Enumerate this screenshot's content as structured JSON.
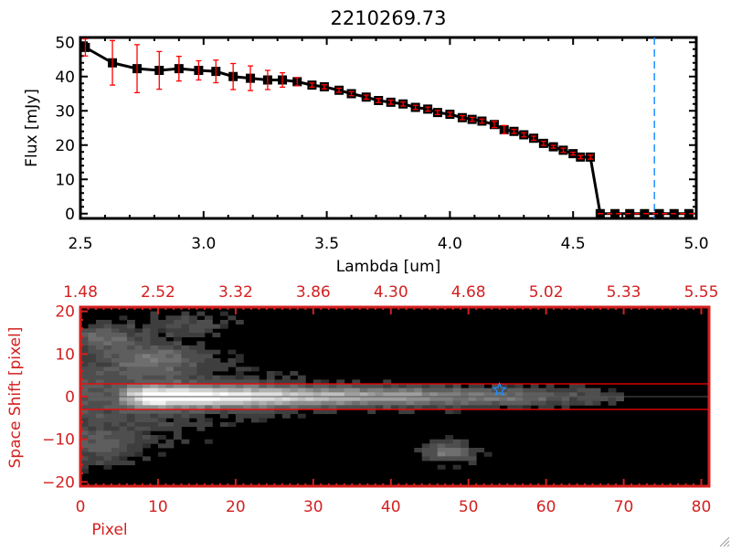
{
  "chart_data": [
    {
      "type": "line",
      "title": "2210269.73",
      "xlabel": "Lambda [um]",
      "ylabel": "Flux [mJy]",
      "xlim": [
        2.5,
        5.0
      ],
      "ylim": [
        -1.4,
        51.4
      ],
      "xticks": [
        "2.5",
        "3.0",
        "3.5",
        "4.0",
        "4.5",
        "5.0"
      ],
      "xtick_values": [
        2.5,
        3.0,
        3.5,
        4.0,
        4.5,
        5.0
      ],
      "yticks": [
        "0",
        "10",
        "20",
        "30",
        "40",
        "50"
      ],
      "ytick_values": [
        0,
        10,
        20,
        30,
        40,
        50
      ],
      "series": [
        {
          "name": "flux",
          "color": "#000000",
          "errcolor": "#ff0000",
          "x": [
            2.52,
            2.63,
            2.73,
            2.82,
            2.9,
            2.98,
            3.05,
            3.12,
            3.19,
            3.26,
            3.32,
            3.38,
            3.44,
            3.49,
            3.55,
            3.6,
            3.66,
            3.71,
            3.76,
            3.81,
            3.86,
            3.91,
            3.95,
            4.0,
            4.05,
            4.09,
            4.13,
            4.18,
            4.22,
            4.26,
            4.3,
            4.34,
            4.38,
            4.42,
            4.46,
            4.5,
            4.53,
            4.57,
            4.61,
            4.67,
            4.73,
            4.79,
            4.85,
            4.91,
            4.97
          ],
          "y": [
            48.5,
            44,
            42.3,
            41.8,
            42.3,
            41.8,
            41.5,
            40,
            39.5,
            39,
            39,
            38.5,
            37.5,
            37,
            36,
            35,
            34,
            33,
            32.5,
            32,
            31,
            30.5,
            29.5,
            29,
            28,
            27.5,
            27,
            26,
            24.5,
            24,
            23,
            22,
            20.5,
            19.5,
            18.5,
            17.5,
            16.5,
            16.5,
            0,
            0,
            0,
            0,
            0,
            0,
            0
          ],
          "err": [
            2.5,
            6.5,
            7,
            5.5,
            3.6,
            2.8,
            3.3,
            3.8,
            3.6,
            2.8,
            2.1,
            1.2,
            0.6,
            0.6,
            0.6,
            0.6,
            0.6,
            0.6,
            0.6,
            0.6,
            0.6,
            0.6,
            0.6,
            0.6,
            0.6,
            0.6,
            0.6,
            0.9,
            1.2,
            0.6,
            0.6,
            0.6,
            0.6,
            0.4,
            0.6,
            0.4,
            0.5,
            0.6,
            0,
            0,
            0,
            0,
            0,
            0,
            0
          ]
        }
      ],
      "zero_line": {
        "value": 0,
        "color": "#ff0000",
        "style": "dashed",
        "from": 4.6
      },
      "marker_line": {
        "x": 4.83,
        "color": "#1e90ff",
        "style": "dashed"
      }
    },
    {
      "type": "heatmap",
      "xlabel": "Pixel",
      "ylabel": "Space Shift [pixel]",
      "axis_color": "#d42020",
      "xlim": [
        0,
        81
      ],
      "ylim": [
        -21,
        21
      ],
      "xticks": [
        "0",
        "10",
        "20",
        "30",
        "40",
        "50",
        "60",
        "70",
        "80"
      ],
      "xtick_values": [
        0,
        10,
        20,
        30,
        40,
        50,
        60,
        70,
        80
      ],
      "top_xticks": [
        "1.48",
        "2.52",
        "3.32",
        "3.86",
        "4.30",
        "4.68",
        "5.02",
        "5.33",
        "5.55"
      ],
      "yticks": [
        "20",
        "10",
        "0",
        "−10",
        "−20"
      ],
      "ytick_values": [
        20,
        10,
        0,
        -10,
        -20
      ],
      "aperture_lines": [
        3,
        -3
      ],
      "aperture_color": "#ff0000",
      "center_line": 0,
      "source_marker": {
        "x": 54,
        "y": 1.6,
        "symbol": "star",
        "color": "#1e90ff"
      },
      "components": [
        {
          "kind": "trace",
          "amp": 1.0,
          "peak_x": 9,
          "sigma_y": 1.7,
          "end_x": 70
        },
        {
          "kind": "halo",
          "amp": 0.28,
          "sigma_y": 7,
          "end_x": 35
        },
        {
          "kind": "blob",
          "x": 10,
          "y": 9,
          "amp": 0.3,
          "sx": 4,
          "sy": 2.5
        },
        {
          "kind": "blob",
          "x": 3,
          "y": 14,
          "amp": 0.28,
          "sx": 3,
          "sy": 2.5
        },
        {
          "kind": "blob",
          "x": 47.5,
          "y": -13,
          "amp": 0.38,
          "sx": 2.5,
          "sy": 1.8
        },
        {
          "kind": "blob",
          "x": 14,
          "y": 17,
          "amp": 0.2,
          "sx": 4,
          "sy": 2
        },
        {
          "kind": "blob",
          "x": 3,
          "y": -12,
          "amp": 0.22,
          "sx": 4,
          "sy": 3
        }
      ]
    }
  ]
}
